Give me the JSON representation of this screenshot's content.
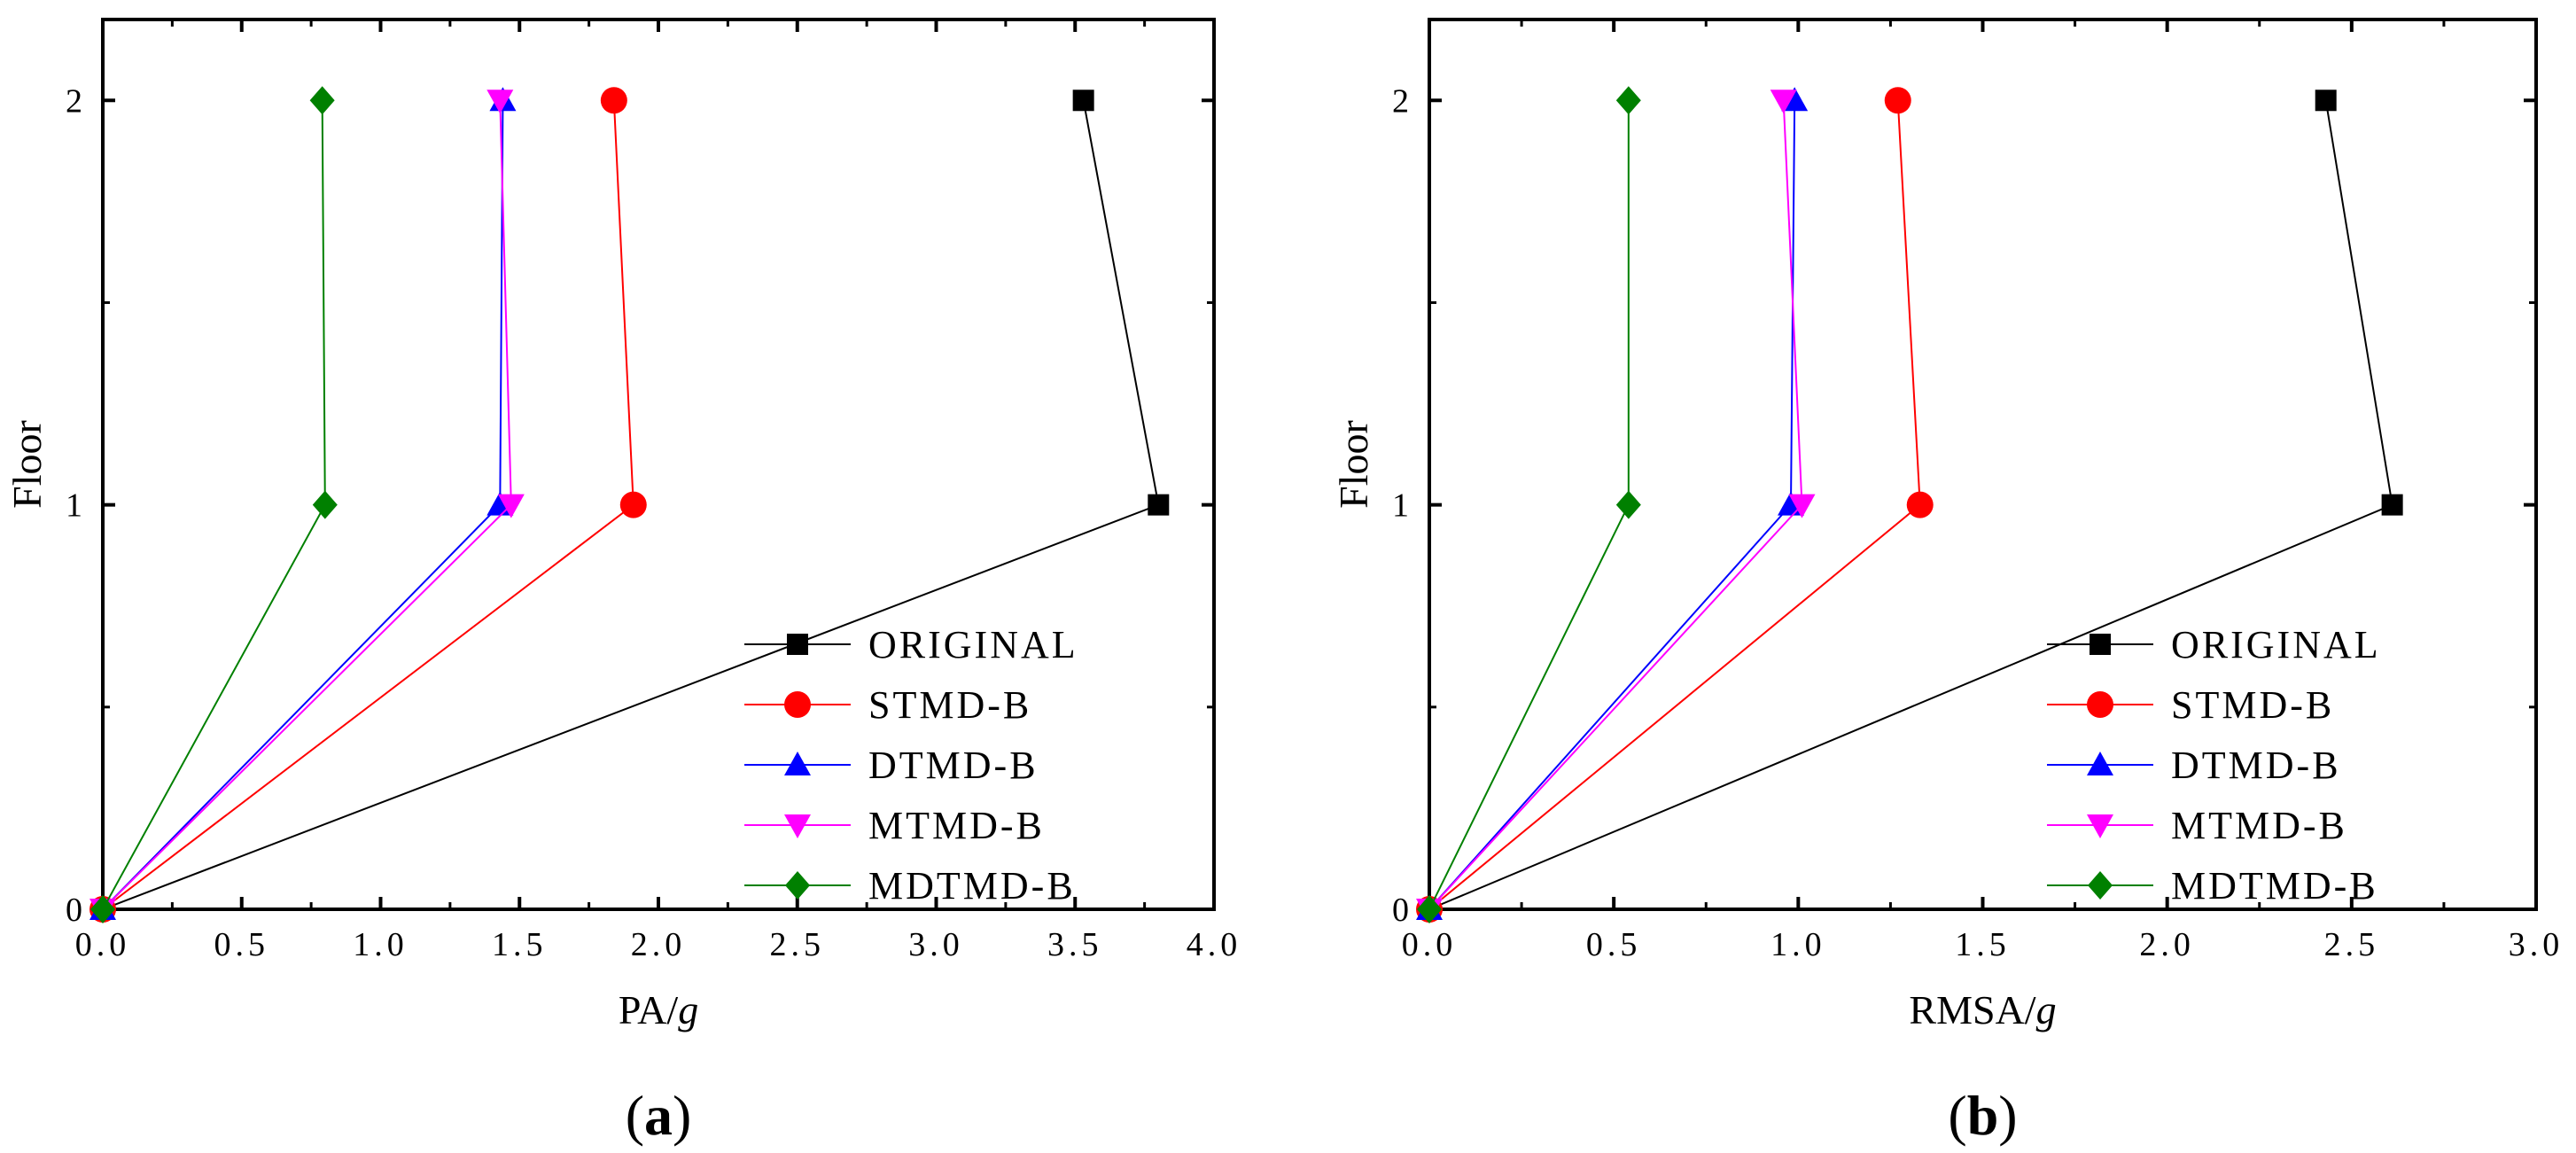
{
  "chart_data": [
    {
      "type": "line",
      "panel_label": "a",
      "xlabel": "PA/",
      "xlabel_italic": "g",
      "ylabel": "Floor",
      "xlim": [
        0,
        4.0
      ],
      "ylim": [
        0,
        2.2
      ],
      "xticks": [
        0.0,
        0.5,
        1.0,
        1.5,
        2.0,
        2.5,
        3.0,
        3.5,
        4.0
      ],
      "xtick_labels": [
        "0.0",
        "0.5",
        "1.0",
        "1.5",
        "2.0",
        "2.5",
        "3.0",
        "3.5",
        "4.0"
      ],
      "yticks": [
        0,
        1,
        2
      ],
      "ytick_labels": [
        "0",
        "1",
        "2"
      ],
      "legend_position": "lower-right",
      "series": [
        {
          "name": "ORIGINAL",
          "color": "#000000",
          "marker": "square",
          "values": [
            [
              0,
              0
            ],
            [
              3.8,
              1
            ],
            [
              3.53,
              2
            ]
          ]
        },
        {
          "name": "STMD-B",
          "color": "#ff0000",
          "marker": "circle",
          "values": [
            [
              0,
              0
            ],
            [
              1.91,
              1
            ],
            [
              1.84,
              2
            ]
          ]
        },
        {
          "name": "DTMD-B",
          "color": "#0000ff",
          "marker": "triangle-up",
          "values": [
            [
              0,
              0
            ],
            [
              1.43,
              1
            ],
            [
              1.44,
              2
            ]
          ]
        },
        {
          "name": "MTMD-B",
          "color": "#ff00ff",
          "marker": "triangle-down",
          "values": [
            [
              0,
              0
            ],
            [
              1.47,
              1
            ],
            [
              1.43,
              2
            ]
          ]
        },
        {
          "name": "MDTMD-B",
          "color": "#008000",
          "marker": "diamond",
          "values": [
            [
              0,
              0
            ],
            [
              0.8,
              1
            ],
            [
              0.79,
              2
            ]
          ]
        }
      ]
    },
    {
      "type": "line",
      "panel_label": "b",
      "xlabel": "RMSA/",
      "xlabel_italic": "g",
      "ylabel": "Floor",
      "xlim": [
        0,
        3.0
      ],
      "ylim": [
        0,
        2.2
      ],
      "xticks": [
        0.0,
        0.5,
        1.0,
        1.5,
        2.0,
        2.5,
        3.0
      ],
      "xtick_labels": [
        "0.0",
        "0.5",
        "1.0",
        "1.5",
        "2.0",
        "2.5",
        "3.0"
      ],
      "yticks": [
        0,
        1,
        2
      ],
      "ytick_labels": [
        "0",
        "1",
        "2"
      ],
      "legend_position": "lower-right",
      "series": [
        {
          "name": "ORIGINAL",
          "color": "#000000",
          "marker": "square",
          "values": [
            [
              0,
              0
            ],
            [
              2.61,
              1
            ],
            [
              2.43,
              2
            ]
          ]
        },
        {
          "name": "STMD-B",
          "color": "#ff0000",
          "marker": "circle",
          "values": [
            [
              0,
              0
            ],
            [
              1.33,
              1
            ],
            [
              1.27,
              2
            ]
          ]
        },
        {
          "name": "DTMD-B",
          "color": "#0000ff",
          "marker": "triangle-up",
          "values": [
            [
              0,
              0
            ],
            [
              0.98,
              1
            ],
            [
              0.99,
              2
            ]
          ]
        },
        {
          "name": "MTMD-B",
          "color": "#ff00ff",
          "marker": "triangle-down",
          "values": [
            [
              0,
              0
            ],
            [
              1.01,
              1
            ],
            [
              0.96,
              2
            ]
          ]
        },
        {
          "name": "MDTMD-B",
          "color": "#008000",
          "marker": "diamond",
          "values": [
            [
              0,
              0
            ],
            [
              0.54,
              1
            ],
            [
              0.54,
              2
            ]
          ]
        }
      ]
    }
  ]
}
